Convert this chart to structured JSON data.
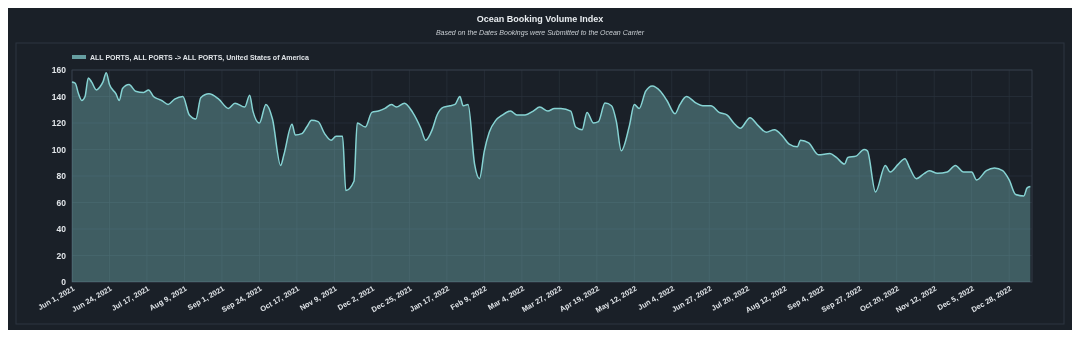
{
  "chart_data": {
    "type": "area",
    "title": "Ocean Booking Volume Index",
    "subtitle": "Based on the Dates Bookings were Submitted to the Ocean Carrier",
    "legend": "top left",
    "grid": true,
    "xlim": [
      "2021-06-01",
      "2023-01-11"
    ],
    "xticks": [
      {
        "value": "2021-06-01",
        "label": "Jun 1, 2021"
      },
      {
        "value": "2021-06-24",
        "label": "Jun 24, 2021"
      },
      {
        "value": "2021-07-17",
        "label": "Jul 17, 2021"
      },
      {
        "value": "2021-08-09",
        "label": "Aug 9, 2021"
      },
      {
        "value": "2021-09-01",
        "label": "Sep 1, 2021"
      },
      {
        "value": "2021-09-24",
        "label": "Sep 24, 2021"
      },
      {
        "value": "2021-10-17",
        "label": "Oct 17, 2021"
      },
      {
        "value": "2021-11-09",
        "label": "Nov 9, 2021"
      },
      {
        "value": "2021-12-02",
        "label": "Dec 2, 2021"
      },
      {
        "value": "2021-12-25",
        "label": "Dec 25, 2021"
      },
      {
        "value": "2022-01-17",
        "label": "Jan 17, 2022"
      },
      {
        "value": "2022-02-09",
        "label": "Feb 9, 2022"
      },
      {
        "value": "2022-03-04",
        "label": "Mar 4, 2022"
      },
      {
        "value": "2022-03-27",
        "label": "Mar 27, 2022"
      },
      {
        "value": "2022-04-19",
        "label": "Apr 19, 2022"
      },
      {
        "value": "2022-05-12",
        "label": "May 12, 2022"
      },
      {
        "value": "2022-06-04",
        "label": "Jun 4, 2022"
      },
      {
        "value": "2022-06-27",
        "label": "Jun 27, 2022"
      },
      {
        "value": "2022-07-20",
        "label": "Jul 20, 2022"
      },
      {
        "value": "2022-08-12",
        "label": "Aug 12, 2022"
      },
      {
        "value": "2022-09-04",
        "label": "Sep 4, 2022"
      },
      {
        "value": "2022-09-27",
        "label": "Sep 27, 2022"
      },
      {
        "value": "2022-10-20",
        "label": "Oct 20, 2022"
      },
      {
        "value": "2022-11-12",
        "label": "Nov 12, 2022"
      },
      {
        "value": "2022-12-05",
        "label": "Dec 5, 2022"
      },
      {
        "value": "2022-12-28",
        "label": "Dec 28, 2022"
      }
    ],
    "ylim": [
      0,
      160
    ],
    "yticks": [
      0,
      20,
      40,
      60,
      80,
      100,
      120,
      140,
      160
    ],
    "x": [
      "2021-06-01",
      "2021-06-03",
      "2021-06-05",
      "2021-06-07",
      "2021-06-09",
      "2021-06-11",
      "2021-06-13",
      "2021-06-16",
      "2021-06-18",
      "2021-06-20",
      "2021-06-22",
      "2021-06-24",
      "2021-06-28",
      "2021-06-30",
      "2021-07-02",
      "2021-07-06",
      "2021-07-10",
      "2021-07-15",
      "2021-07-18",
      "2021-07-21",
      "2021-07-24",
      "2021-07-26",
      "2021-07-30",
      "2021-08-03",
      "2021-08-08",
      "2021-08-12",
      "2021-08-16",
      "2021-08-19",
      "2021-08-24",
      "2021-08-30",
      "2021-09-05",
      "2021-09-09",
      "2021-09-15",
      "2021-09-18",
      "2021-09-20",
      "2021-09-24",
      "2021-09-28",
      "2021-10-02",
      "2021-10-07",
      "2021-10-09",
      "2021-10-14",
      "2021-10-16",
      "2021-10-20",
      "2021-10-23",
      "2021-10-26",
      "2021-10-30",
      "2021-11-03",
      "2021-11-07",
      "2021-11-10",
      "2021-11-14",
      "2021-11-16",
      "2021-11-21",
      "2021-11-23",
      "2021-11-28",
      "2021-12-02",
      "2021-12-06",
      "2021-12-10",
      "2021-12-14",
      "2021-12-17",
      "2021-12-22",
      "2021-12-27",
      "2022-01-01",
      "2022-01-04",
      "2022-01-08",
      "2022-01-11",
      "2022-01-15",
      "2022-01-19",
      "2022-01-22",
      "2022-01-25",
      "2022-01-27",
      "2022-01-30",
      "2022-02-03",
      "2022-02-06",
      "2022-02-09",
      "2022-02-12",
      "2022-02-16",
      "2022-02-20",
      "2022-02-25",
      "2022-03-01",
      "2022-03-06",
      "2022-03-11",
      "2022-03-15",
      "2022-03-20",
      "2022-03-24",
      "2022-03-28",
      "2022-04-03",
      "2022-04-06",
      "2022-04-10",
      "2022-04-13",
      "2022-04-17",
      "2022-04-20",
      "2022-04-24",
      "2022-04-28",
      "2022-05-01",
      "2022-05-04",
      "2022-05-09",
      "2022-05-12",
      "2022-05-15",
      "2022-05-19",
      "2022-05-23",
      "2022-05-28",
      "2022-06-01",
      "2022-06-06",
      "2022-06-09",
      "2022-06-13",
      "2022-06-19",
      "2022-06-23",
      "2022-06-28",
      "2022-07-03",
      "2022-07-08",
      "2022-07-12",
      "2022-07-16",
      "2022-07-22",
      "2022-07-27",
      "2022-08-01",
      "2022-08-06",
      "2022-08-11",
      "2022-08-15",
      "2022-08-20",
      "2022-08-22",
      "2022-08-27",
      "2022-09-02",
      "2022-09-09",
      "2022-09-13",
      "2022-09-18",
      "2022-09-20",
      "2022-09-25",
      "2022-09-30",
      "2022-10-02",
      "2022-10-07",
      "2022-10-13",
      "2022-10-16",
      "2022-10-21",
      "2022-10-25",
      "2022-10-28",
      "2022-11-01",
      "2022-11-06",
      "2022-11-09",
      "2022-11-14",
      "2022-11-20",
      "2022-11-25",
      "2022-11-30",
      "2022-12-05",
      "2022-12-08",
      "2022-12-14",
      "2022-12-19",
      "2022-12-24",
      "2022-12-28",
      "2023-01-01",
      "2023-01-06",
      "2023-01-08",
      "2023-01-10"
    ],
    "series": [
      {
        "name": "ALL PORTS, ALL PORTS -> ALL PORTS, United States of America",
        "color": "#86d3d3",
        "values": [
          151,
          150,
          142,
          137,
          140,
          154,
          151,
          145,
          147,
          151,
          158,
          149,
          142,
          137,
          146,
          149,
          144,
          143,
          145,
          140,
          138,
          137,
          134,
          138,
          140,
          126,
          123,
          139,
          142,
          138,
          131,
          135,
          132,
          141,
          129,
          120,
          134,
          123,
          88,
          96,
          119,
          111,
          112,
          117,
          122,
          121,
          112,
          107,
          110,
          110,
          69,
          76,
          120,
          117,
          128,
          129,
          131,
          134,
          132,
          135,
          128,
          116,
          107,
          115,
          126,
          132,
          133,
          134,
          140,
          133,
          134,
          89,
          78,
          99,
          113,
          122,
          126,
          129,
          126,
          126,
          129,
          132,
          129,
          131,
          131,
          129,
          117,
          115,
          128,
          120,
          121,
          135,
          133,
          121,
          99,
          118,
          134,
          131,
          144,
          148,
          144,
          137,
          127,
          134,
          140,
          135,
          133,
          133,
          128,
          126,
          120,
          116,
          124,
          118,
          113,
          115,
          110,
          104,
          102,
          107,
          105,
          96,
          97,
          94,
          89,
          94,
          95,
          100,
          99,
          68,
          88,
          83,
          89,
          93,
          86,
          78,
          82,
          84,
          82,
          83,
          88,
          83,
          83,
          77,
          84,
          86,
          84,
          77,
          66,
          65,
          71,
          72
        ]
      }
    ]
  }
}
